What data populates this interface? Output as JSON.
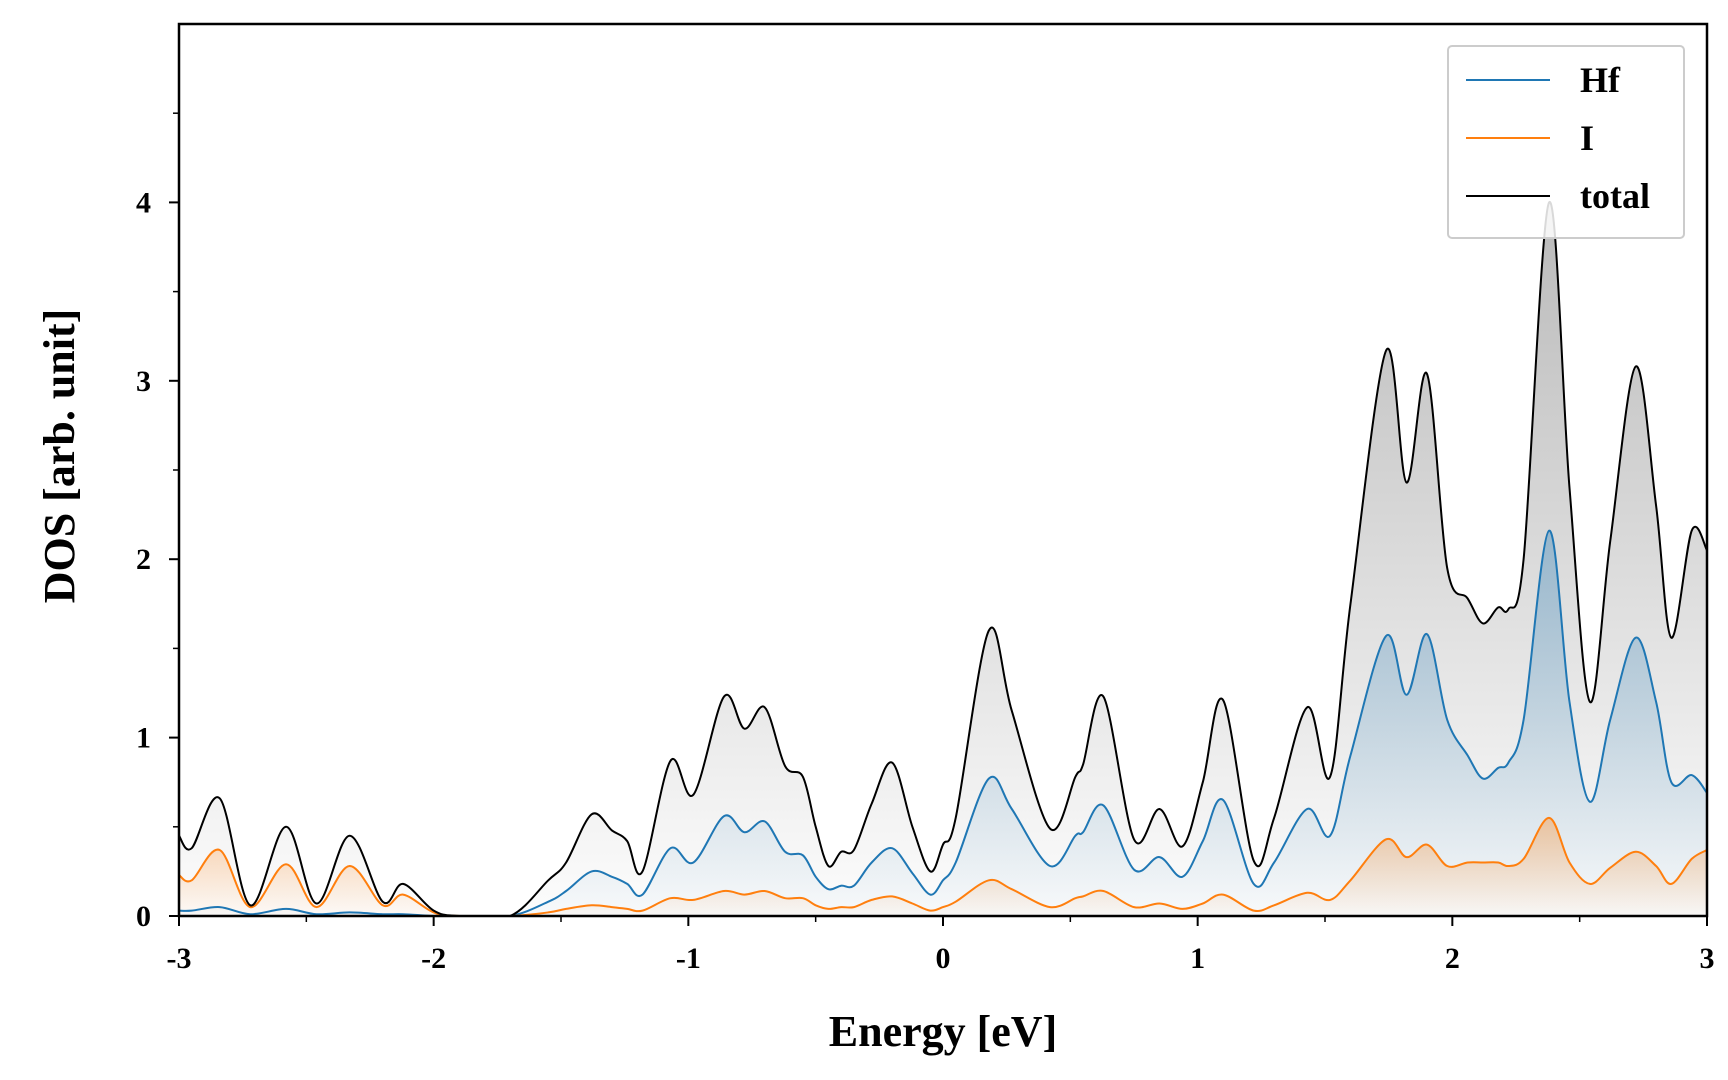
{
  "chart_data": {
    "type": "line",
    "title": "",
    "xlabel": "Energy [eV]",
    "ylabel": "DOS [arb. unit]",
    "xlim": [
      -3,
      3
    ],
    "ylim": [
      0,
      5
    ],
    "x_ticks": [
      -3,
      -2,
      -1,
      0,
      1,
      2,
      3
    ],
    "x_tick_labels": [
      "-3",
      "-2",
      "-1",
      "0",
      "1",
      "2",
      "3"
    ],
    "y_ticks": [
      0,
      1,
      2,
      3,
      4
    ],
    "y_tick_labels": [
      "0",
      "1",
      "2",
      "3",
      "4"
    ],
    "legend_position": "top-right",
    "x": [
      -3.0,
      -2.95,
      -2.84,
      -2.72,
      -2.58,
      -2.46,
      -2.33,
      -2.2,
      -2.12,
      -2.0,
      -1.9,
      -1.7,
      -1.55,
      -1.48,
      -1.38,
      -1.3,
      -1.24,
      -1.18,
      -1.07,
      -0.98,
      -0.86,
      -0.78,
      -0.7,
      -0.62,
      -0.55,
      -0.5,
      -0.45,
      -0.4,
      -0.35,
      -0.28,
      -0.2,
      -0.12,
      -0.05,
      0.0,
      0.05,
      0.18,
      0.27,
      0.42,
      0.52,
      0.55,
      0.63,
      0.75,
      0.85,
      0.94,
      1.02,
      1.1,
      1.22,
      1.3,
      1.43,
      1.52,
      1.6,
      1.74,
      1.82,
      1.9,
      1.98,
      2.06,
      2.12,
      2.18,
      2.22,
      2.28,
      2.38,
      2.46,
      2.54,
      2.62,
      2.72,
      2.8,
      2.86,
      2.94,
      3.0
    ],
    "series": [
      {
        "name": "Hf",
        "color": "#1f77b4",
        "fill": "#1f77b4",
        "values": [
          0.03,
          0.03,
          0.05,
          0.01,
          0.04,
          0.01,
          0.02,
          0.01,
          0.01,
          0.0,
          0.0,
          0.0,
          0.08,
          0.14,
          0.25,
          0.22,
          0.18,
          0.12,
          0.38,
          0.3,
          0.56,
          0.47,
          0.53,
          0.36,
          0.34,
          0.22,
          0.15,
          0.17,
          0.17,
          0.3,
          0.38,
          0.24,
          0.12,
          0.2,
          0.3,
          0.77,
          0.6,
          0.28,
          0.45,
          0.47,
          0.62,
          0.26,
          0.33,
          0.22,
          0.42,
          0.65,
          0.18,
          0.3,
          0.6,
          0.45,
          0.9,
          1.57,
          1.24,
          1.58,
          1.1,
          0.9,
          0.77,
          0.83,
          0.86,
          1.1,
          2.16,
          1.2,
          0.64,
          1.1,
          1.56,
          1.2,
          0.75,
          0.79,
          0.69
        ]
      },
      {
        "name": "I",
        "color": "#ff7f0e",
        "fill": "#ff7f0e",
        "values": [
          0.23,
          0.2,
          0.37,
          0.05,
          0.29,
          0.05,
          0.28,
          0.06,
          0.12,
          0.02,
          0.0,
          0.0,
          0.02,
          0.04,
          0.06,
          0.05,
          0.04,
          0.03,
          0.1,
          0.09,
          0.14,
          0.12,
          0.14,
          0.1,
          0.1,
          0.06,
          0.04,
          0.05,
          0.05,
          0.09,
          0.11,
          0.07,
          0.03,
          0.05,
          0.08,
          0.2,
          0.15,
          0.05,
          0.1,
          0.11,
          0.14,
          0.05,
          0.07,
          0.04,
          0.07,
          0.12,
          0.03,
          0.06,
          0.13,
          0.09,
          0.2,
          0.43,
          0.33,
          0.4,
          0.28,
          0.3,
          0.3,
          0.3,
          0.28,
          0.32,
          0.55,
          0.3,
          0.18,
          0.27,
          0.36,
          0.28,
          0.18,
          0.32,
          0.37
        ]
      },
      {
        "name": "total",
        "color": "#000000",
        "fill": "#808080",
        "values": [
          0.45,
          0.38,
          0.66,
          0.06,
          0.5,
          0.07,
          0.45,
          0.08,
          0.18,
          0.03,
          0.0,
          0.0,
          0.2,
          0.3,
          0.57,
          0.48,
          0.42,
          0.25,
          0.87,
          0.68,
          1.23,
          1.05,
          1.17,
          0.84,
          0.78,
          0.5,
          0.28,
          0.36,
          0.37,
          0.63,
          0.86,
          0.5,
          0.25,
          0.4,
          0.55,
          1.6,
          1.15,
          0.49,
          0.78,
          0.85,
          1.23,
          0.43,
          0.6,
          0.39,
          0.75,
          1.21,
          0.31,
          0.55,
          1.17,
          0.78,
          1.75,
          3.17,
          2.43,
          3.04,
          1.95,
          1.78,
          1.64,
          1.73,
          1.72,
          2.0,
          4.0,
          2.4,
          1.2,
          2.1,
          3.08,
          2.3,
          1.56,
          2.16,
          2.05
        ]
      }
    ]
  }
}
